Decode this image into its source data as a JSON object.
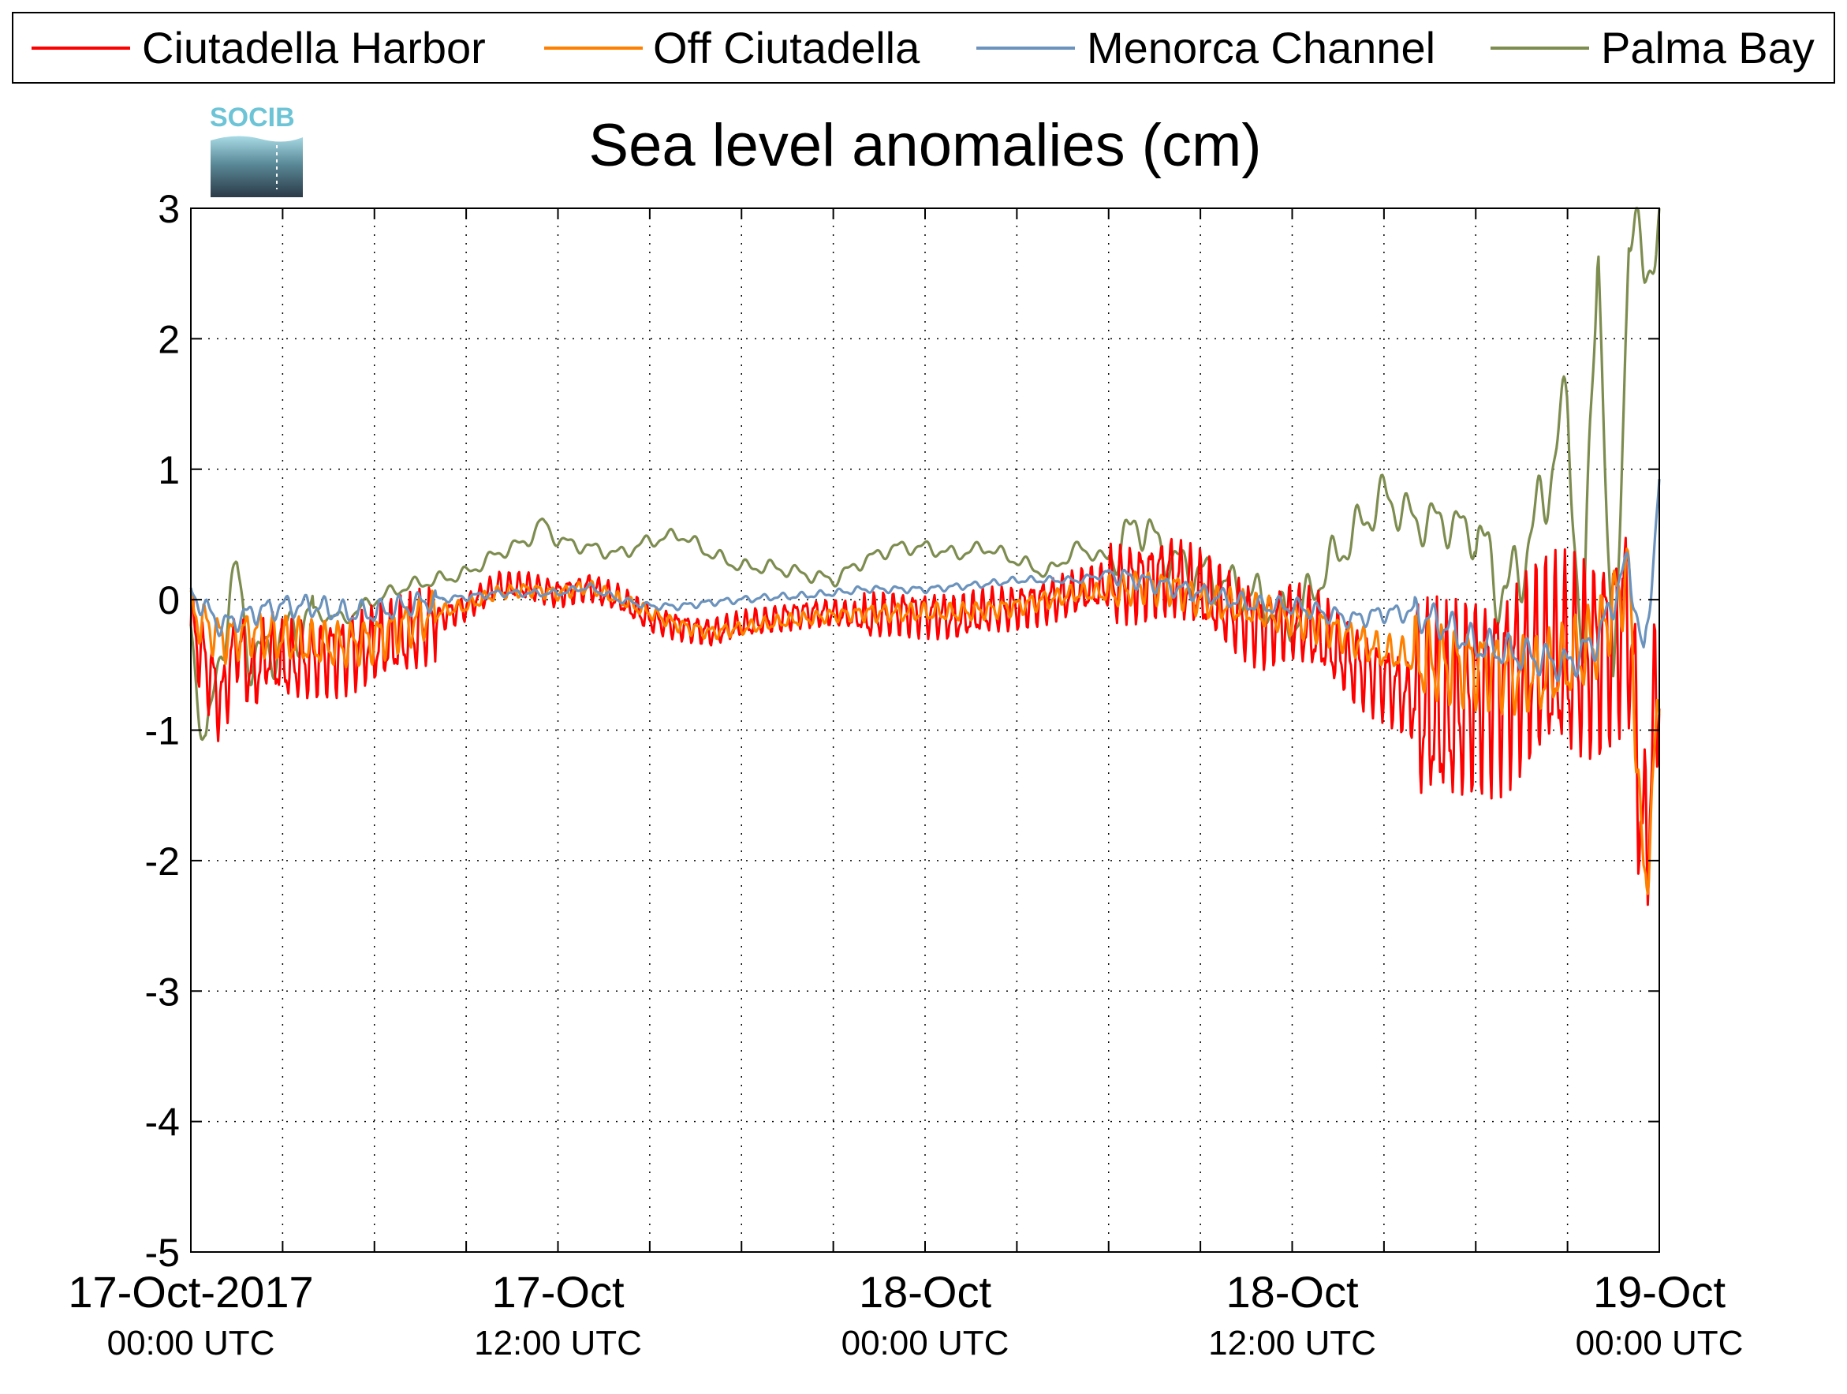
{
  "chart_data": {
    "type": "line",
    "title": "Sea level anomalies (cm)",
    "xlabel": "",
    "ylabel": "",
    "ylim": [
      -5,
      3
    ],
    "yticks": [
      -5,
      -4,
      -3,
      -2,
      -1,
      0,
      1,
      2,
      3
    ],
    "xlim_hours": [
      0,
      48
    ],
    "x_unit": "hours since 17-Oct-2017 00:00 UTC",
    "x_major_ticks": [
      {
        "hour": 0,
        "date": "17-Oct-2017",
        "time": "00:00 UTC"
      },
      {
        "hour": 12,
        "date": "17-Oct",
        "time": "12:00 UTC"
      },
      {
        "hour": 24,
        "date": "18-Oct",
        "time": "00:00 UTC"
      },
      {
        "hour": 36,
        "date": "18-Oct",
        "time": "12:00 UTC"
      },
      {
        "hour": 48,
        "date": "19-Oct",
        "time": "00:00 UTC"
      }
    ],
    "x_grid_hours": [
      3,
      6,
      9,
      12,
      15,
      18,
      21,
      24,
      27,
      30,
      33,
      36,
      39,
      42,
      45
    ],
    "grid": true,
    "legend_position": "top",
    "logo_text": "SOCIB",
    "series": [
      {
        "name": "Ciutadella Harbor",
        "color": "#ff0000",
        "x": [
          0,
          0.5,
          1,
          1.5,
          2,
          2.5,
          3,
          4,
          5,
          6,
          7,
          8,
          9,
          10,
          11,
          12,
          13,
          14,
          15,
          16,
          17,
          18,
          19,
          20,
          21,
          22,
          23,
          24,
          25,
          26,
          27,
          28,
          29,
          30,
          31,
          32,
          33,
          34,
          35,
          36,
          37,
          38,
          39,
          40,
          41,
          42,
          43,
          44,
          45,
          46,
          47,
          47.5,
          48
        ],
        "y": [
          -0.2,
          -0.5,
          -0.8,
          -0.3,
          -0.6,
          -0.4,
          -0.5,
          -0.45,
          -0.4,
          -0.35,
          -0.3,
          -0.15,
          -0.05,
          0.1,
          0.1,
          0.05,
          0.1,
          0.0,
          -0.15,
          -0.2,
          -0.25,
          -0.2,
          -0.15,
          -0.1,
          -0.1,
          -0.15,
          -0.1,
          -0.1,
          -0.15,
          -0.1,
          -0.05,
          0.0,
          0.05,
          0.1,
          0.15,
          0.2,
          0.05,
          -0.1,
          -0.2,
          -0.15,
          -0.3,
          -0.5,
          -0.6,
          -0.8,
          -0.9,
          -0.7,
          -0.6,
          -0.5,
          -0.5,
          -0.4,
          -0.1,
          -2.0,
          -0.5
        ]
      },
      {
        "name": "Off Ciutadella",
        "color": "#ff8000",
        "x": [
          0,
          1,
          2,
          3,
          4,
          5,
          6,
          7,
          8,
          9,
          10,
          11,
          12,
          13,
          14,
          15,
          16,
          17,
          18,
          19,
          20,
          21,
          22,
          23,
          24,
          25,
          26,
          27,
          28,
          29,
          30,
          31,
          32,
          33,
          34,
          35,
          36,
          37,
          38,
          39,
          40,
          41,
          42,
          43,
          44,
          45,
          46,
          47,
          47.5,
          48
        ],
        "y": [
          -0.1,
          -0.3,
          -0.25,
          -0.3,
          -0.35,
          -0.35,
          -0.3,
          -0.2,
          -0.1,
          -0.05,
          0.05,
          0.08,
          0.05,
          0.1,
          0.0,
          -0.1,
          -0.2,
          -0.25,
          -0.22,
          -0.18,
          -0.15,
          -0.12,
          -0.1,
          -0.1,
          -0.1,
          -0.1,
          -0.08,
          -0.05,
          0.0,
          0.05,
          0.05,
          0.1,
          0.1,
          0.0,
          -0.05,
          -0.1,
          -0.15,
          -0.2,
          -0.3,
          -0.4,
          -0.45,
          -0.5,
          -0.5,
          -0.55,
          -0.6,
          -0.5,
          -0.3,
          0.2,
          -2.3,
          -0.8
        ]
      },
      {
        "name": "Menorca Channel",
        "color": "#6b93bd",
        "x": [
          0,
          1,
          2,
          3,
          4,
          5,
          6,
          7,
          8,
          9,
          10,
          11,
          12,
          13,
          14,
          15,
          16,
          17,
          18,
          19,
          20,
          21,
          22,
          23,
          24,
          25,
          26,
          27,
          28,
          29,
          30,
          31,
          32,
          33,
          34,
          35,
          36,
          37,
          38,
          39,
          40,
          41,
          42,
          43,
          44,
          45,
          46,
          47,
          47.5,
          48
        ],
        "y": [
          0.05,
          -0.2,
          -0.1,
          -0.05,
          -0.05,
          -0.1,
          -0.1,
          -0.05,
          0.0,
          0.02,
          0.05,
          0.05,
          0.05,
          0.1,
          0.0,
          -0.05,
          -0.05,
          -0.02,
          0.0,
          0.02,
          0.03,
          0.05,
          0.08,
          0.08,
          0.08,
          0.1,
          0.12,
          0.15,
          0.15,
          0.15,
          0.2,
          0.15,
          0.1,
          0.05,
          0.0,
          -0.05,
          -0.05,
          -0.1,
          -0.15,
          -0.1,
          -0.1,
          -0.2,
          -0.35,
          -0.4,
          -0.45,
          -0.5,
          -0.3,
          0.3,
          -0.5,
          0.9
        ]
      },
      {
        "name": "Palma Bay",
        "color": "#7d8c4f",
        "x": [
          0,
          0.5,
          1,
          1.5,
          2,
          3,
          4,
          5,
          6,
          7,
          8,
          9,
          10,
          11,
          11.5,
          12,
          13,
          14,
          15,
          16,
          17,
          18,
          19,
          20,
          21,
          22,
          23,
          24,
          25,
          26,
          27,
          28,
          29,
          30,
          31,
          32,
          33,
          34,
          35,
          36,
          37,
          38,
          39,
          40,
          41,
          42,
          43,
          44,
          45,
          45.5,
          46,
          46.5,
          47,
          47.5,
          48
        ],
        "y": [
          -0.2,
          -1.2,
          -0.3,
          0.2,
          -0.5,
          -0.3,
          -0.1,
          -0.15,
          0.0,
          0.1,
          0.15,
          0.2,
          0.35,
          0.45,
          0.6,
          0.45,
          0.4,
          0.35,
          0.45,
          0.5,
          0.35,
          0.25,
          0.25,
          0.2,
          0.15,
          0.3,
          0.4,
          0.4,
          0.35,
          0.4,
          0.3,
          0.2,
          0.4,
          0.3,
          0.6,
          0.3,
          0.2,
          0.1,
          0.0,
          -0.2,
          0.2,
          0.5,
          0.8,
          0.6,
          0.6,
          0.5,
          0.0,
          0.6,
          1.5,
          -0.5,
          2.9,
          -1.0,
          2.9,
          2.5,
          2.9
        ]
      }
    ]
  }
}
